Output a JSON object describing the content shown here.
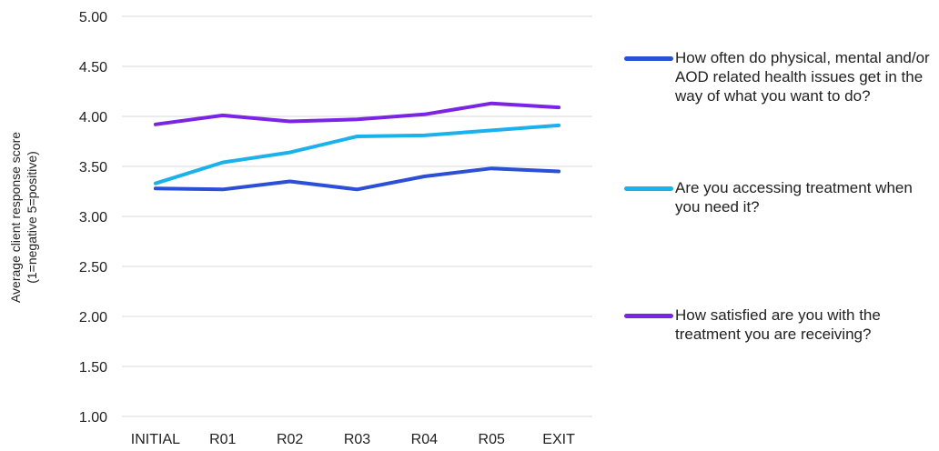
{
  "chart_data": {
    "type": "line",
    "categories": [
      "INITIAL",
      "R01",
      "R02",
      "R03",
      "R04",
      "R05",
      "EXIT"
    ],
    "ylabel": [
      "Average client response score",
      "(1=negative 5=positive)"
    ],
    "ylim": [
      1.0,
      5.0
    ],
    "yticks": [
      "1.00",
      "1.50",
      "2.00",
      "2.50",
      "3.00",
      "3.50",
      "4.00",
      "4.50",
      "5.00"
    ],
    "grid": true,
    "legend_position": "right",
    "series": [
      {
        "name": "How often do physical, mental and/or AOD related health issues get in the way of what you want to do?",
        "color": "#2B4FD6",
        "values": [
          3.28,
          3.27,
          3.35,
          3.27,
          3.4,
          3.48,
          3.45
        ]
      },
      {
        "name": "Are you accessing treatment when you need it?",
        "color": "#1BB2EC",
        "values": [
          3.33,
          3.54,
          3.64,
          3.8,
          3.81,
          3.86,
          3.91
        ]
      },
      {
        "name": "How satisfied are you with the treatment you are receiving?",
        "color": "#7A25E6",
        "values": [
          3.92,
          4.01,
          3.95,
          3.97,
          4.02,
          4.13,
          4.09
        ]
      }
    ]
  }
}
